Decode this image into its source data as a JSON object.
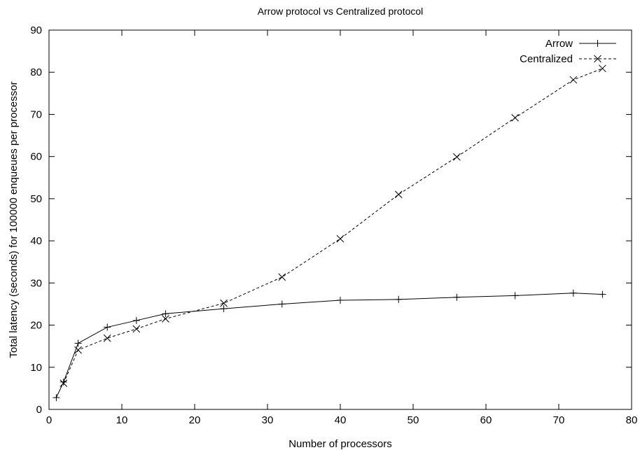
{
  "chart_data": {
    "type": "line",
    "title": "Arrow protocol vs Centralized protocol",
    "xlabel": "Number of processors",
    "ylabel": "Total latency (seconds) for 100000 enqueues per processor",
    "xlim": [
      0,
      80
    ],
    "ylim": [
      0,
      90
    ],
    "xticks": [
      0,
      10,
      20,
      30,
      40,
      50,
      60,
      70,
      80
    ],
    "yticks": [
      0,
      10,
      20,
      30,
      40,
      50,
      60,
      70,
      80,
      90
    ],
    "grid": false,
    "legend_position": "top-right",
    "series": [
      {
        "name": "Arrow",
        "line_style": "solid",
        "marker": "plus",
        "color": "#000000",
        "x": [
          1,
          2,
          4,
          8,
          12,
          16,
          24,
          32,
          40,
          48,
          56,
          64,
          72,
          76
        ],
        "y": [
          2.8,
          6.5,
          15.7,
          19.5,
          21.1,
          22.7,
          23.9,
          25.0,
          25.9,
          26.1,
          26.6,
          27.0,
          27.6,
          27.3
        ]
      },
      {
        "name": "Centralized",
        "line_style": "dashed",
        "marker": "cross",
        "color": "#000000",
        "x": [
          2,
          4,
          8,
          12,
          16,
          24,
          32,
          40,
          48,
          56,
          64,
          72,
          76
        ],
        "y": [
          6.2,
          14.1,
          16.9,
          19.1,
          21.5,
          25.2,
          31.4,
          40.5,
          51.0,
          59.9,
          69.2,
          78.2,
          80.9
        ]
      }
    ]
  }
}
